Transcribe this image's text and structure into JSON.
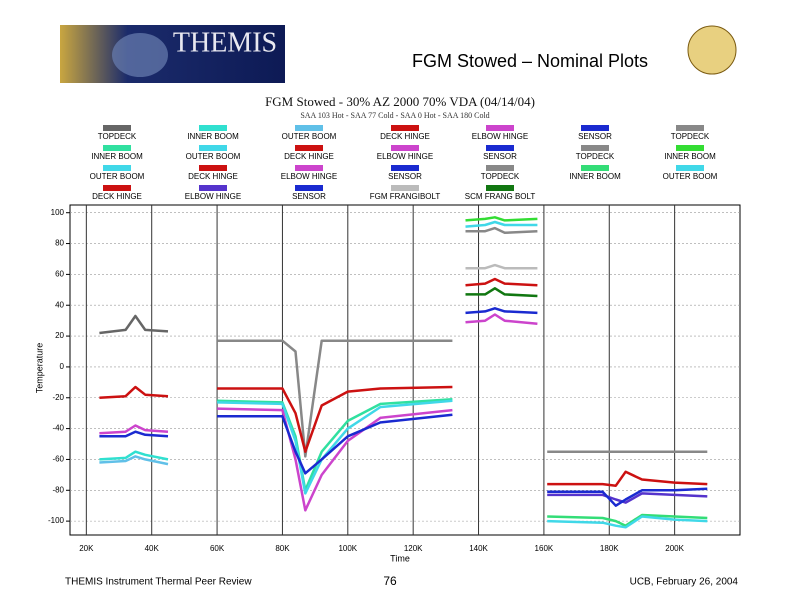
{
  "header": {
    "logo_text": "THEMIS",
    "title": "FGM Stowed – Nominal Plots"
  },
  "chart_data": {
    "type": "line",
    "title": "FGM Stowed - 30% AZ 2000 70% VDA (04/14/04)",
    "subtitle": "SAA 103 Hot - SAA 77 Cold - SAA 0 Hot - SAA 180 Cold",
    "x_label": "Time",
    "y_label": "Temperature",
    "xlim": [
      15000,
      220000
    ],
    "ylim": [
      -109,
      105
    ],
    "xticks": [
      {
        "value": 20000,
        "label": "20K"
      },
      {
        "value": 40000,
        "label": "40K"
      },
      {
        "value": 60000,
        "label": "60K"
      },
      {
        "value": 80000,
        "label": "80K"
      },
      {
        "value": 100000,
        "label": "100K"
      },
      {
        "value": 120000,
        "label": "120K"
      },
      {
        "value": 140000,
        "label": "140K"
      },
      {
        "value": 160000,
        "label": "160K"
      },
      {
        "value": 180000,
        "label": "180K"
      },
      {
        "value": 200000,
        "label": "200K"
      }
    ],
    "yticks": [
      -100,
      -80,
      -60,
      -40,
      -20,
      0,
      20,
      40,
      60,
      80,
      100
    ],
    "grid": true,
    "series": [
      {
        "name": "TOPDECK",
        "color": "#666666",
        "x": [
          24000,
          32000,
          35000,
          38000,
          45000
        ],
        "values": [
          22,
          24,
          33,
          24,
          23
        ]
      },
      {
        "name": "INNER BOOM",
        "color": "#30e0d0",
        "x": [
          24000,
          32000,
          35000,
          38000,
          45000
        ],
        "values": [
          -60,
          -59,
          -55,
          -57,
          -60
        ]
      },
      {
        "name": "OUTER BOOM",
        "color": "#60c0e8",
        "x": [
          24000,
          32000,
          35000,
          38000,
          45000
        ],
        "values": [
          -62,
          -61,
          -58,
          -60,
          -63
        ]
      },
      {
        "name": "DECK HINGE",
        "color": "#cc1111",
        "x": [
          24000,
          32000,
          35000,
          38000,
          45000
        ],
        "values": [
          -20,
          -19,
          -13,
          -18,
          -19
        ]
      },
      {
        "name": "ELBOW HINGE",
        "color": "#cc44cc",
        "x": [
          24000,
          32000,
          35000,
          38000,
          45000
        ],
        "values": [
          -43,
          -42,
          -38,
          -41,
          -42
        ]
      },
      {
        "name": "SENSOR",
        "color": "#1a2ad0",
        "x": [
          24000,
          32000,
          35000,
          38000,
          45000
        ],
        "values": [
          -45,
          -45,
          -42,
          -44,
          -45
        ]
      },
      {
        "name": "TOPDECK",
        "color": "#888888",
        "x": [
          60000,
          80000,
          84000,
          87000,
          92000,
          100000,
          110000,
          132000
        ],
        "values": [
          17,
          17,
          10,
          -58,
          17,
          17,
          17,
          17
        ]
      },
      {
        "name": "INNER BOOM",
        "color": "#30e0a0",
        "x": [
          60000,
          80000,
          84000,
          87000,
          92000,
          100000,
          110000,
          132000
        ],
        "values": [
          -22,
          -23,
          -45,
          -80,
          -55,
          -35,
          -24,
          -21
        ]
      },
      {
        "name": "OUTER BOOM",
        "color": "#40d8e8",
        "x": [
          60000,
          80000,
          84000,
          87000,
          92000,
          100000,
          110000,
          132000
        ],
        "values": [
          -23,
          -24,
          -48,
          -82,
          -60,
          -40,
          -26,
          -22
        ]
      },
      {
        "name": "DECK HINGE",
        "color": "#cc1111",
        "x": [
          60000,
          80000,
          84000,
          87000,
          92000,
          100000,
          110000,
          132000
        ],
        "values": [
          -14,
          -14,
          -30,
          -55,
          -25,
          -16,
          -14,
          -13
        ]
      },
      {
        "name": "ELBOW HINGE",
        "color": "#cc44cc",
        "x": [
          60000,
          80000,
          84000,
          87000,
          92000,
          100000,
          110000,
          132000
        ],
        "values": [
          -27,
          -28,
          -60,
          -93,
          -70,
          -48,
          -33,
          -28
        ]
      },
      {
        "name": "SENSOR",
        "color": "#1a2ad0",
        "x": [
          60000,
          80000,
          84000,
          87000,
          92000,
          100000,
          110000,
          132000
        ],
        "values": [
          -32,
          -32,
          -55,
          -69,
          -60,
          -45,
          -36,
          -31
        ]
      },
      {
        "name": "TOPDECK",
        "color": "#888888",
        "x": [
          136000,
          142000,
          145000,
          148000,
          158000
        ],
        "values": [
          88,
          88,
          90,
          87,
          88
        ]
      },
      {
        "name": "INNER BOOM",
        "color": "#33dd33",
        "x": [
          136000,
          142000,
          145000,
          148000,
          158000
        ],
        "values": [
          95,
          96,
          97,
          95,
          96
        ]
      },
      {
        "name": "OUTER BOOM",
        "color": "#40d8e8",
        "x": [
          136000,
          142000,
          145000,
          148000,
          158000
        ],
        "values": [
          91,
          92,
          94,
          92,
          92
        ]
      },
      {
        "name": "DECK HINGE",
        "color": "#cc1111",
        "x": [
          136000,
          142000,
          145000,
          148000,
          158000
        ],
        "values": [
          53,
          54,
          57,
          54,
          53
        ]
      },
      {
        "name": "ELBOW HINGE",
        "color": "#cc44cc",
        "x": [
          136000,
          142000,
          145000,
          148000,
          158000
        ],
        "values": [
          29,
          30,
          34,
          30,
          28
        ]
      },
      {
        "name": "SENSOR",
        "color": "#1a2ad0",
        "x": [
          136000,
          142000,
          145000,
          148000,
          158000
        ],
        "values": [
          35,
          36,
          38,
          36,
          35
        ]
      },
      {
        "name": "TOPDECK",
        "color": "#888888",
        "x": [
          161000,
          178000,
          182000,
          185000,
          190000,
          200000,
          210000
        ],
        "values": [
          -55,
          -55,
          -55,
          -55,
          -55,
          -55,
          -55
        ]
      },
      {
        "name": "INNER BOOM",
        "color": "#33dd77",
        "x": [
          161000,
          178000,
          182000,
          185000,
          190000,
          200000,
          210000
        ],
        "values": [
          -97,
          -98,
          -100,
          -103,
          -96,
          -97,
          -98
        ]
      },
      {
        "name": "OUTER BOOM",
        "color": "#40d8e8",
        "x": [
          161000,
          178000,
          182000,
          185000,
          190000,
          200000,
          210000
        ],
        "values": [
          -100,
          -101,
          -103,
          -104,
          -97,
          -99,
          -100
        ]
      },
      {
        "name": "DECK HINGE",
        "color": "#cc1111",
        "x": [
          161000,
          178000,
          182000,
          185000,
          190000,
          200000,
          210000
        ],
        "values": [
          -76,
          -76,
          -77,
          -68,
          -73,
          -75,
          -76
        ]
      },
      {
        "name": "ELBOW HINGE",
        "color": "#5533cc",
        "x": [
          161000,
          178000,
          182000,
          185000,
          190000,
          200000,
          210000
        ],
        "values": [
          -83,
          -83,
          -86,
          -88,
          -82,
          -83,
          -84
        ]
      },
      {
        "name": "SENSOR",
        "color": "#1a2ad0",
        "x": [
          161000,
          178000,
          182000,
          185000,
          190000,
          200000,
          210000
        ],
        "values": [
          -81,
          -81,
          -90,
          -86,
          -80,
          -80,
          -79
        ]
      },
      {
        "name": "FGM FRANGIBOLT",
        "color": "#bbbbbb",
        "x": [
          136000,
          142000,
          145000,
          148000,
          158000
        ],
        "values": [
          64,
          64,
          66,
          64,
          64
        ]
      },
      {
        "name": "SCM FRANG BOLT",
        "color": "#117711",
        "x": [
          136000,
          142000,
          145000,
          148000,
          158000
        ],
        "values": [
          47,
          47,
          51,
          47,
          46
        ]
      }
    ]
  },
  "footer": {
    "left": "THEMIS Instrument Thermal Peer Review",
    "page": "76",
    "right": "UCB, February 26, 2004"
  }
}
